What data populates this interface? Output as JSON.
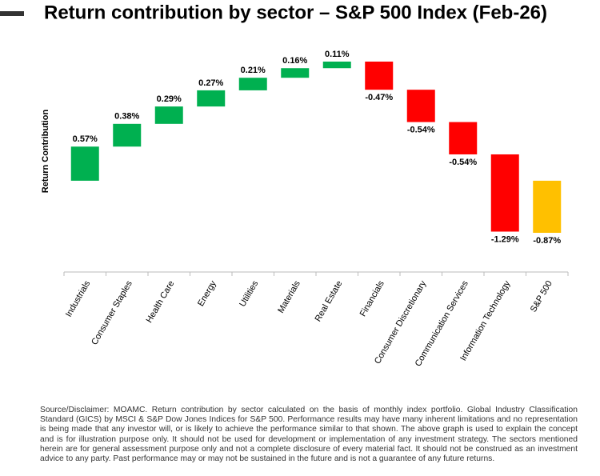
{
  "chart_data": {
    "type": "waterfall",
    "title": "Return contribution by sector – S&P 500 Index (Feb-26)",
    "y_label": "Return Contribution",
    "categories": [
      "Industrials",
      "Consumer Staples",
      "Health Care",
      "Energy",
      "Utilities",
      "Materials",
      "Real Estate",
      "Financials",
      "Consumer Discretionary",
      "Communication Services",
      "Information Technology",
      "S&P 500"
    ],
    "values": [
      0.57,
      0.38,
      0.29,
      0.27,
      0.21,
      0.16,
      0.11,
      -0.47,
      -0.54,
      -0.54,
      -1.29,
      -0.87
    ],
    "value_labels": [
      "0.57%",
      "0.38%",
      "0.29%",
      "0.27%",
      "0.21%",
      "0.16%",
      "0.11%",
      "-0.47%",
      "-0.54%",
      "-0.54%",
      "-1.29%",
      "-0.87%"
    ],
    "increase_color": "#00b050",
    "decrease_color": "#ff0000",
    "total_color": "#ffc000"
  },
  "footnote": "Source/Disclaimer: MOAMC. Return contribution by sector calculated on the basis of monthly index portfolio. Global Industry Classification Standard (GICS) by MSCI & S&P Dow Jones Indices for S&P 500. Performance results may have many inherent limitations and no representation is being made that any investor will, or is likely to achieve the performance similar to that shown. The above graph is used to explain the concept and is for illustration purpose only. It should not be used for development or implementation of any investment strategy. The sectors mentioned herein are for general assessment purpose only and not a complete disclosure of every material fact. It should not be construed as an investment advice to any party. Past performance may or may not be sustained in the future and is not a guarantee of any future returns."
}
